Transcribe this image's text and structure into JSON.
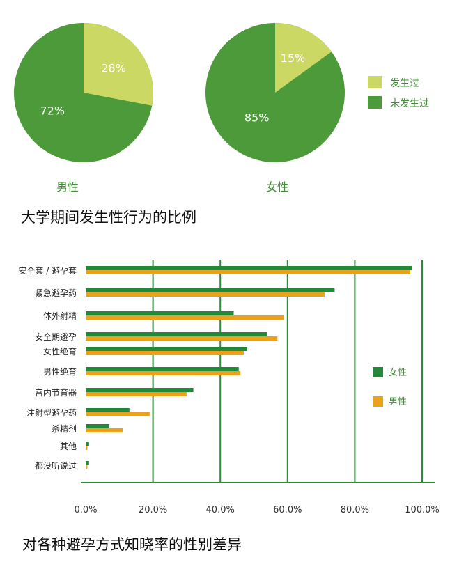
{
  "colors": {
    "yes": "#cbd863",
    "no": "#4d9a3b",
    "female": "#23883a",
    "male": "#eba21a",
    "grid": "#2f8a3a",
    "label_green": "#3c8f33"
  },
  "pies": {
    "legend": {
      "yes": "发生过",
      "no": "未发生过"
    },
    "caption": "大学期间发生性行为的比例",
    "chart_data": [
      {
        "type": "pie",
        "name": "男性",
        "categories": [
          "发生过",
          "未发生过"
        ],
        "values": [
          28,
          72
        ],
        "labels": [
          "28%",
          "72%"
        ]
      },
      {
        "type": "pie",
        "name": "女性",
        "categories": [
          "发生过",
          "未发生过"
        ],
        "values": [
          15,
          85
        ],
        "labels": [
          "15%",
          "85%"
        ]
      }
    ]
  },
  "bars": {
    "caption": "对各种避孕方式知晓率的性别差异",
    "chart_data": {
      "type": "bar",
      "orientation": "horizontal",
      "categories": [
        "安全套 / 避孕套",
        "紧急避孕药",
        "体外射精",
        "安全期避孕",
        "女性绝育",
        "男性绝育",
        "宫内节育器",
        "注射型避孕药",
        "杀精剂",
        "其他",
        "都没听说过"
      ],
      "series": [
        {
          "name": "女性",
          "values": [
            97,
            74,
            44,
            54,
            48,
            45.5,
            32,
            13,
            7,
            1,
            1
          ]
        },
        {
          "name": "男性",
          "values": [
            96.5,
            71,
            59,
            57,
            47,
            46,
            30,
            19,
            11,
            0.5,
            0.5
          ]
        }
      ],
      "xlim": [
        0,
        100
      ],
      "xticks": [
        "0.0%",
        "20.0%",
        "40.0%",
        "60.0%",
        "80.0%",
        "100.0%"
      ],
      "grid": true,
      "legend_position": "right"
    }
  }
}
